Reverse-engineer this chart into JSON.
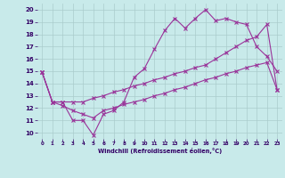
{
  "xlabel": "Windchill (Refroidissement éolien,°C)",
  "background_color": "#c8eaea",
  "line_color": "#993399",
  "grid_color": "#aacccc",
  "xlim": [
    -0.5,
    23.5
  ],
  "ylim": [
    9.5,
    20.5
  ],
  "xticks": [
    0,
    1,
    2,
    3,
    4,
    5,
    6,
    7,
    8,
    9,
    10,
    11,
    12,
    13,
    14,
    15,
    16,
    17,
    18,
    19,
    20,
    21,
    22,
    23
  ],
  "yticks": [
    10,
    11,
    12,
    13,
    14,
    15,
    16,
    17,
    18,
    19,
    20
  ],
  "line1_x": [
    0,
    1,
    2,
    3,
    4,
    5,
    6,
    7,
    8,
    9,
    10,
    11,
    12,
    13,
    14,
    15,
    16,
    17,
    18,
    19,
    20,
    21,
    22,
    23
  ],
  "line1_y": [
    14.9,
    12.5,
    12.5,
    11.0,
    11.0,
    9.8,
    11.5,
    11.8,
    12.5,
    14.5,
    15.2,
    16.8,
    18.3,
    19.3,
    18.5,
    19.3,
    20.0,
    19.1,
    19.3,
    19.0,
    18.8,
    17.0,
    16.2,
    15.0
  ],
  "line2_x": [
    0,
    1,
    2,
    3,
    4,
    5,
    6,
    7,
    8,
    9,
    10,
    11,
    12,
    13,
    14,
    15,
    16,
    17,
    18,
    19,
    20,
    21,
    22,
    23
  ],
  "line2_y": [
    14.9,
    12.5,
    12.5,
    12.5,
    12.5,
    12.8,
    13.0,
    13.3,
    13.5,
    13.8,
    14.0,
    14.3,
    14.5,
    14.8,
    15.0,
    15.3,
    15.5,
    16.0,
    16.5,
    17.0,
    17.5,
    17.8,
    18.8,
    13.5
  ],
  "line3_x": [
    0,
    1,
    2,
    3,
    4,
    5,
    6,
    7,
    8,
    9,
    10,
    11,
    12,
    13,
    14,
    15,
    16,
    17,
    18,
    19,
    20,
    21,
    22,
    23
  ],
  "line3_y": [
    14.9,
    12.5,
    12.2,
    11.8,
    11.5,
    11.2,
    11.8,
    12.0,
    12.3,
    12.5,
    12.7,
    13.0,
    13.2,
    13.5,
    13.7,
    14.0,
    14.3,
    14.5,
    14.8,
    15.0,
    15.3,
    15.5,
    15.7,
    13.5
  ]
}
